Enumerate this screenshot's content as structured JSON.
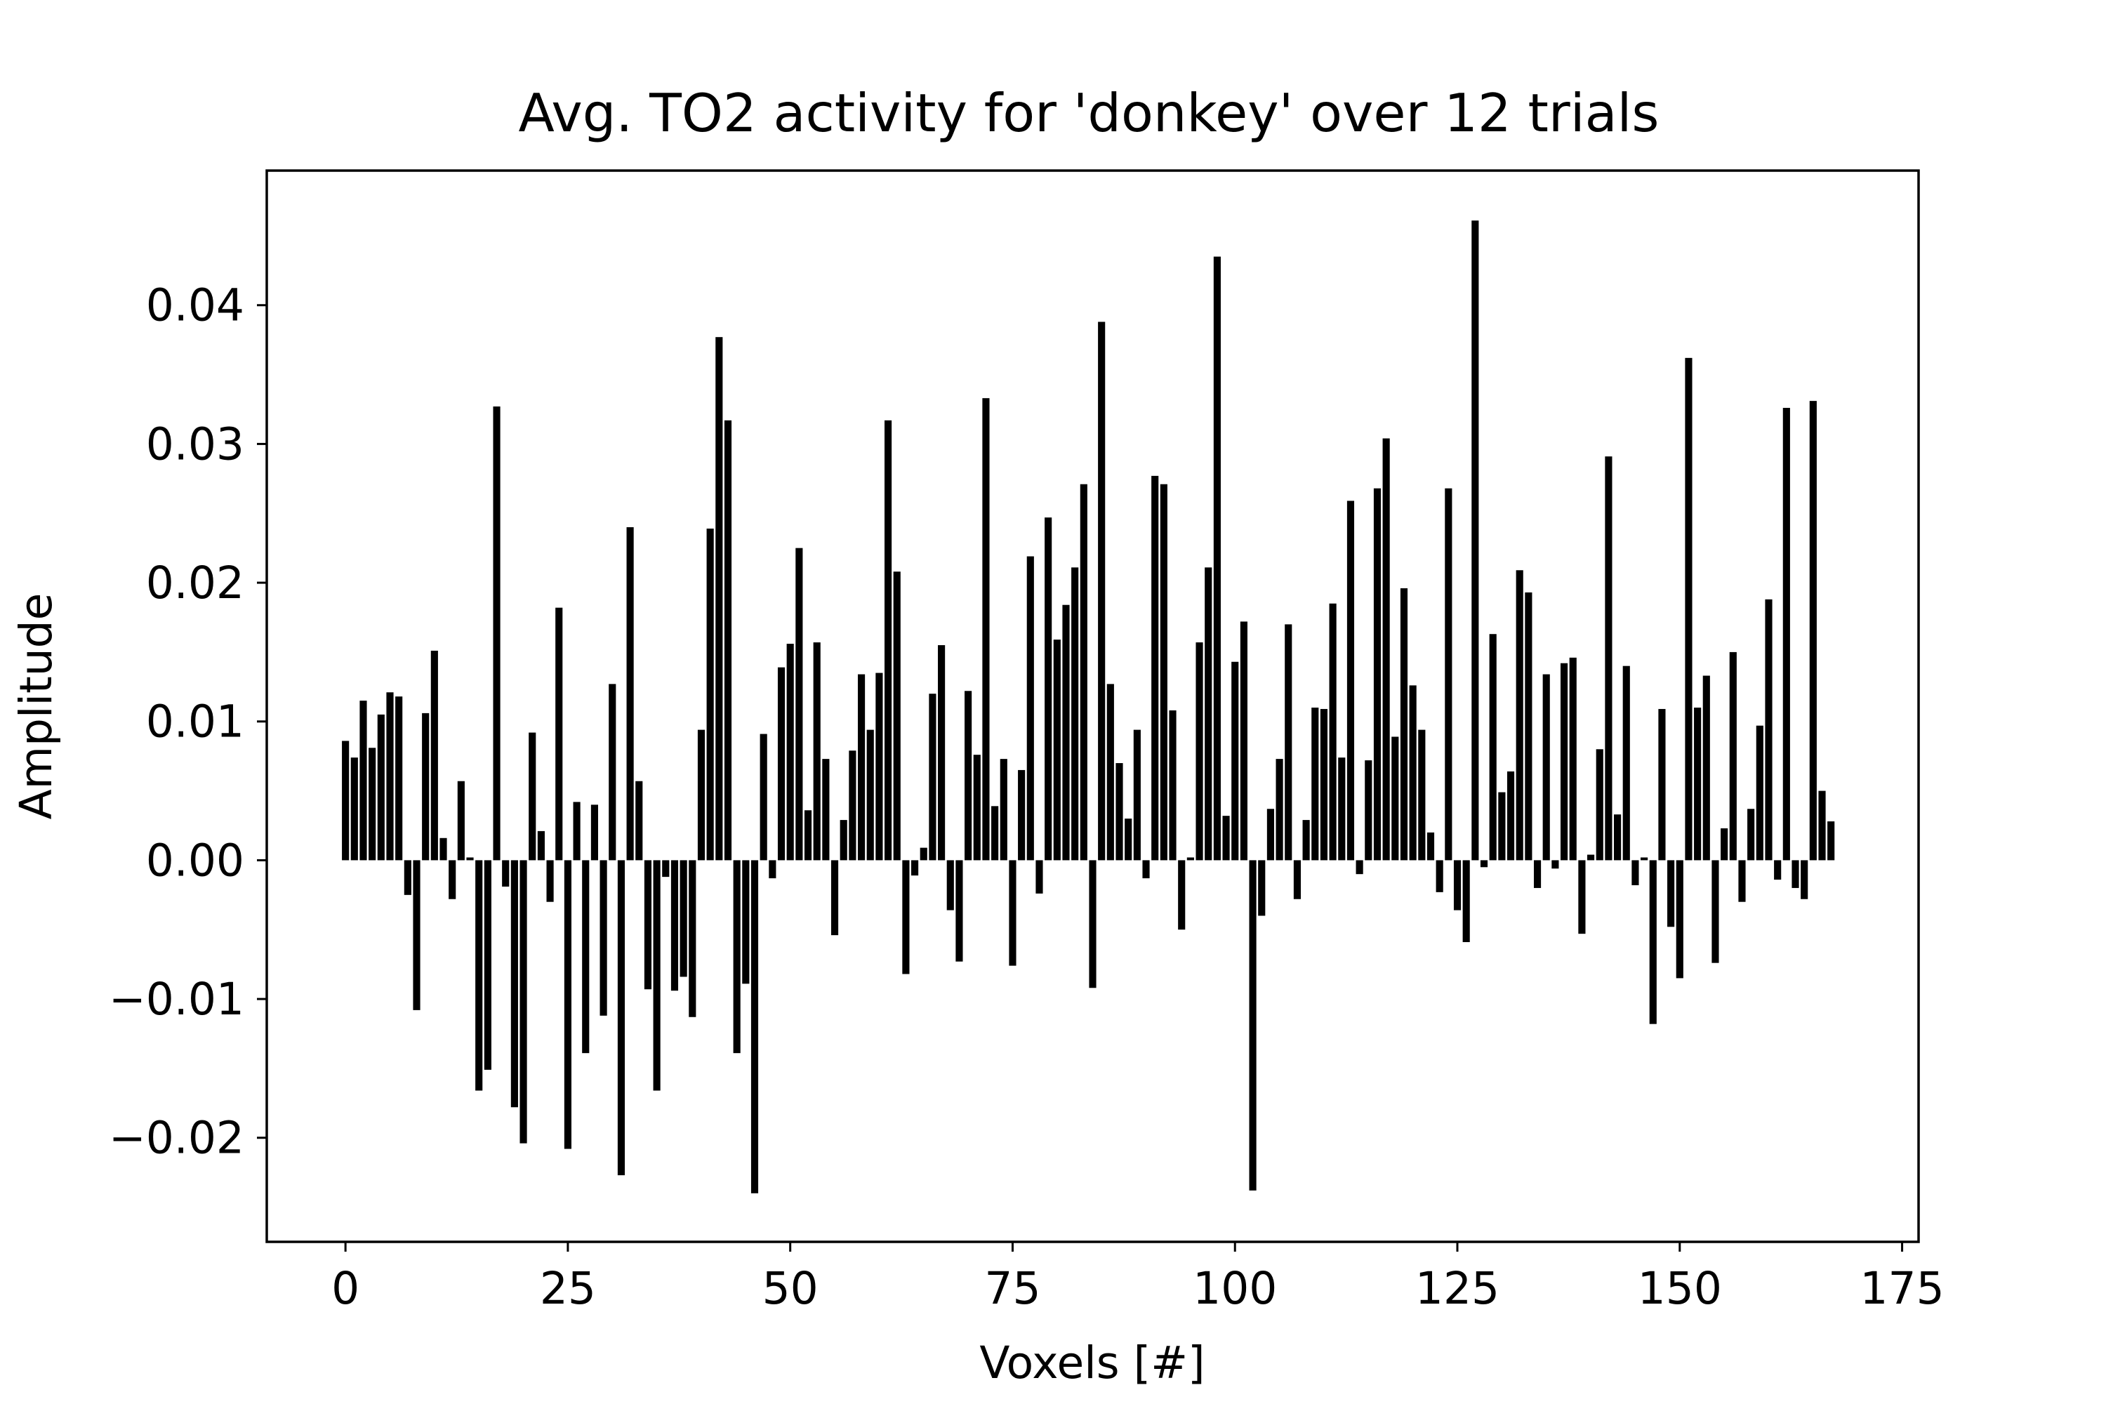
{
  "chart_data": {
    "type": "bar",
    "title": "Avg. TO2 activity for 'donkey' over 12 trials",
    "xlabel": "Voxels [#]",
    "ylabel": "Amplitude",
    "x_ticks": [
      0,
      25,
      50,
      75,
      100,
      125,
      150,
      175
    ],
    "x_tick_labels": [
      "0",
      "25",
      "50",
      "75",
      "100",
      "125",
      "150",
      "175"
    ],
    "y_ticks": [
      -0.02,
      -0.01,
      0.0,
      0.01,
      0.02,
      0.03,
      0.04
    ],
    "y_tick_labels": [
      "−0.02",
      "−0.01",
      "0.00",
      "0.01",
      "0.02",
      "0.03",
      "0.04"
    ],
    "xlim": [
      -8.85,
      176.85
    ],
    "ylim": [
      -0.0275,
      0.0497
    ],
    "grid": false,
    "bar_color": "#000000",
    "x": [
      0,
      1,
      2,
      3,
      4,
      5,
      6,
      7,
      8,
      9,
      10,
      11,
      12,
      13,
      14,
      15,
      16,
      17,
      18,
      19,
      20,
      21,
      22,
      23,
      24,
      25,
      26,
      27,
      28,
      29,
      30,
      31,
      32,
      33,
      34,
      35,
      36,
      37,
      38,
      39,
      40,
      41,
      42,
      43,
      44,
      45,
      46,
      47,
      48,
      49,
      50,
      51,
      52,
      53,
      54,
      55,
      56,
      57,
      58,
      59,
      60,
      61,
      62,
      63,
      64,
      65,
      66,
      67,
      68,
      69,
      70,
      71,
      72,
      73,
      74,
      75,
      76,
      77,
      78,
      79,
      80,
      81,
      82,
      83,
      84,
      85,
      86,
      87,
      88,
      89,
      90,
      91,
      92,
      93,
      94,
      95,
      96,
      97,
      98,
      99,
      100,
      101,
      102,
      103,
      104,
      105,
      106,
      107,
      108,
      109,
      110,
      111,
      112,
      113,
      114,
      115,
      116,
      117,
      118,
      119,
      120,
      121,
      122,
      123,
      124,
      125,
      126,
      127,
      128,
      129,
      130,
      131,
      132,
      133,
      134,
      135,
      136,
      137,
      138,
      139,
      140,
      141,
      142,
      143,
      144,
      145,
      146,
      147,
      148,
      149,
      150,
      151,
      152,
      153,
      154,
      155,
      156,
      157,
      158,
      159,
      160,
      161,
      162,
      163,
      164,
      165,
      166,
      167
    ],
    "values": [
      0.0086,
      0.0074,
      0.0115,
      0.0081,
      0.0105,
      0.0121,
      0.0118,
      -0.0025,
      -0.0108,
      0.0106,
      0.0151,
      0.0016,
      -0.0028,
      0.0057,
      0.0002,
      -0.0166,
      -0.0151,
      0.0327,
      -0.0019,
      -0.0178,
      -0.0204,
      0.0092,
      0.0021,
      -0.003,
      0.0182,
      -0.0208,
      0.0042,
      -0.0139,
      0.004,
      -0.0112,
      0.0127,
      -0.0227,
      0.024,
      0.0057,
      -0.0093,
      -0.0166,
      -0.0012,
      -0.0094,
      -0.0084,
      -0.0113,
      0.0094,
      0.0239,
      0.0377,
      0.0317,
      -0.0139,
      -0.0089,
      -0.024,
      0.0091,
      -0.0013,
      0.0139,
      0.0156,
      0.0225,
      0.0036,
      0.0157,
      0.0073,
      -0.0054,
      0.0029,
      0.0079,
      0.0134,
      0.0094,
      0.0135,
      0.0317,
      0.0208,
      -0.0082,
      -0.0011,
      0.0009,
      0.012,
      0.0155,
      -0.0036,
      -0.0073,
      0.0122,
      0.0076,
      0.0333,
      0.0039,
      0.0073,
      -0.0076,
      0.0065,
      0.0219,
      -0.0024,
      0.0247,
      0.0159,
      0.0184,
      0.0211,
      0.0271,
      -0.0092,
      0.0388,
      0.0127,
      0.007,
      0.003,
      0.0094,
      -0.0013,
      0.0277,
      0.0271,
      0.0108,
      -0.005,
      0.0002,
      0.0157,
      0.0211,
      0.0435,
      0.0032,
      0.0143,
      0.0172,
      -0.0238,
      -0.004,
      0.0037,
      0.0073,
      0.017,
      -0.0028,
      0.0029,
      0.011,
      0.0109,
      0.0185,
      0.0074,
      0.0259,
      -0.001,
      0.0072,
      0.0268,
      0.0304,
      0.0089,
      0.0196,
      0.0126,
      0.0094,
      0.002,
      -0.0023,
      0.0268,
      -0.0036,
      -0.0059,
      0.0461,
      -0.0005,
      0.0163,
      0.0049,
      0.0064,
      0.0209,
      0.0193,
      -0.002,
      0.0134,
      -0.0006,
      0.0142,
      0.0146,
      -0.0053,
      0.0004,
      0.008,
      0.0291,
      0.0033,
      0.014,
      -0.0018,
      0.0002,
      -0.0118,
      0.0109,
      -0.0048,
      -0.0085,
      0.0362,
      0.011,
      0.0133,
      -0.0074,
      0.0023,
      0.015,
      -0.003,
      0.0037,
      0.0097,
      0.0188,
      -0.0014,
      0.0326,
      -0.002,
      -0.0028,
      0.0331,
      0.005,
      0.0028
    ]
  }
}
